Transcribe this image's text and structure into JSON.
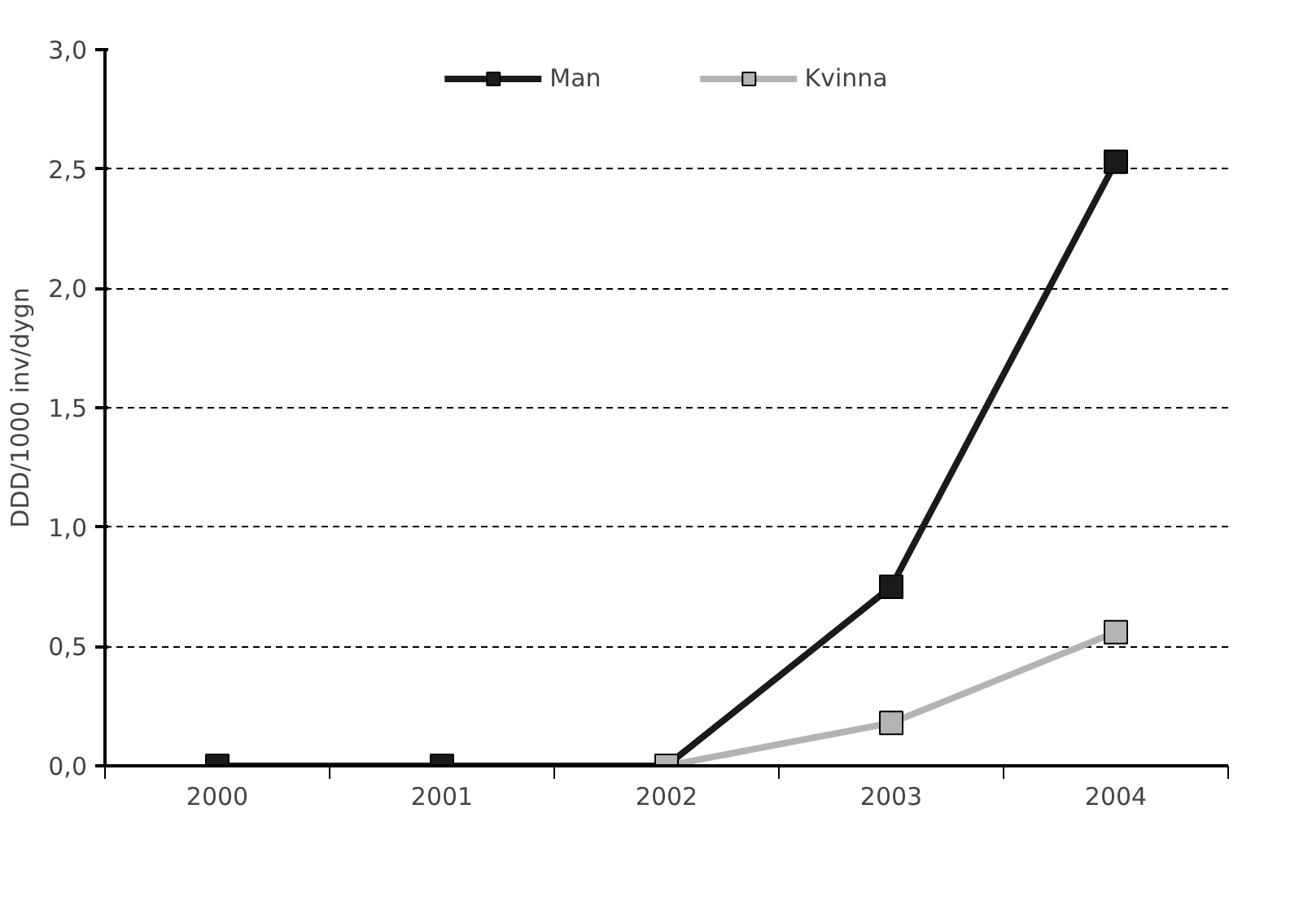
{
  "chart_data": {
    "type": "line",
    "ylabel": "DDD/1000 inv/dygn",
    "categories": [
      "2000",
      "2001",
      "2002",
      "2003",
      "2004"
    ],
    "series": [
      {
        "name": "Man",
        "color": "#1a1a1a",
        "values": [
          0,
          0,
          0,
          0.75,
          2.53
        ]
      },
      {
        "name": "Kvinna",
        "color": "#b3b3b3",
        "values": [
          null,
          null,
          0,
          0.18,
          0.56
        ]
      }
    ],
    "ylim": [
      0,
      3
    ],
    "yticks": [
      {
        "value": 0,
        "label": "0,0"
      },
      {
        "value": 0.5,
        "label": "0,5"
      },
      {
        "value": 1,
        "label": "1,0"
      },
      {
        "value": 1.5,
        "label": "1,5"
      },
      {
        "value": 2,
        "label": "2,0"
      },
      {
        "value": 2.5,
        "label": "2,5"
      },
      {
        "value": 3,
        "label": "3,0"
      }
    ],
    "grid": "y",
    "legend": "top",
    "marker": "square",
    "line_style": "solid"
  }
}
